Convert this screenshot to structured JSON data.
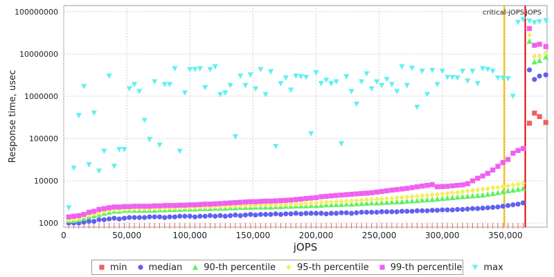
{
  "chart_data": {
    "type": "scatter",
    "xlabel": "jOPS",
    "ylabel": "Response time, usec",
    "xlim": [
      0,
      383000
    ],
    "ylim": [
      800,
      140000000
    ],
    "y_scale": "log",
    "grid": true,
    "x_ticks": [
      0,
      50000,
      100000,
      150000,
      200000,
      250000,
      300000,
      350000
    ],
    "x_tick_labels": [
      "0",
      "50,000",
      "100,000",
      "150,000",
      "200,000",
      "250,000",
      "300,000",
      "350,000"
    ],
    "y_ticks": [
      1000,
      10000,
      100000,
      1000000,
      10000000,
      100000000
    ],
    "y_tick_labels": [
      "1000",
      "10000",
      "100000",
      "1000000",
      "10000000",
      "100000000"
    ],
    "legend_position": "bottom",
    "annotations": {
      "critical_line_x": 349000,
      "critical_line_color": "#ffb800",
      "max_line_x": 365700,
      "max_line_color": "#e00000",
      "label": "critical-jOPS",
      "label2": "jOPS"
    },
    "series": [
      {
        "name": "min",
        "color": "#f06060",
        "marker": "square",
        "x": [
          369000,
          373000,
          377000,
          382000
        ],
        "y": [
          230000,
          400000,
          330000,
          240000
        ]
      },
      {
        "name": "median",
        "color": "#6060f0",
        "marker": "circle",
        "x": [
          4000,
          8000,
          12000,
          16000,
          20000,
          24000,
          28000,
          32000,
          36000,
          40000,
          44000,
          48000,
          52000,
          56000,
          60000,
          64000,
          68000,
          72000,
          76000,
          80000,
          84000,
          88000,
          92000,
          96000,
          100000,
          104000,
          108000,
          112000,
          116000,
          120000,
          124000,
          128000,
          132000,
          136000,
          140000,
          144000,
          148000,
          152000,
          156000,
          160000,
          164000,
          168000,
          172000,
          176000,
          180000,
          184000,
          188000,
          192000,
          196000,
          200000,
          204000,
          208000,
          212000,
          216000,
          220000,
          224000,
          228000,
          232000,
          236000,
          240000,
          244000,
          248000,
          252000,
          256000,
          260000,
          264000,
          268000,
          272000,
          276000,
          280000,
          284000,
          288000,
          292000,
          296000,
          300000,
          304000,
          308000,
          312000,
          316000,
          320000,
          324000,
          328000,
          332000,
          336000,
          340000,
          344000,
          348000,
          352000,
          356000,
          360000,
          364000,
          369000,
          373000,
          377000,
          382000
        ],
        "y": [
          1000,
          1000,
          1000,
          1050,
          1100,
          1100,
          1200,
          1200,
          1250,
          1300,
          1250,
          1300,
          1350,
          1350,
          1350,
          1350,
          1400,
          1400,
          1400,
          1350,
          1400,
          1400,
          1450,
          1450,
          1450,
          1400,
          1450,
          1450,
          1500,
          1450,
          1500,
          1450,
          1500,
          1550,
          1500,
          1550,
          1600,
          1550,
          1600,
          1600,
          1600,
          1650,
          1600,
          1650,
          1650,
          1700,
          1650,
          1700,
          1700,
          1700,
          1700,
          1650,
          1700,
          1700,
          1750,
          1750,
          1700,
          1750,
          1800,
          1800,
          1800,
          1800,
          1850,
          1850,
          1850,
          1850,
          1900,
          1900,
          1900,
          1950,
          1950,
          1950,
          2000,
          2000,
          2050,
          2050,
          2050,
          2100,
          2100,
          2150,
          2200,
          2200,
          2250,
          2300,
          2350,
          2400,
          2500,
          2600,
          2700,
          2800,
          3000,
          4200000,
          2500000,
          3000000,
          3200000
        ]
      },
      {
        "name": "90-th percentile",
        "color": "#60f060",
        "marker": "triangle-up",
        "x": [
          4000,
          8000,
          12000,
          16000,
          20000,
          24000,
          28000,
          32000,
          36000,
          40000,
          44000,
          48000,
          52000,
          56000,
          60000,
          64000,
          68000,
          72000,
          76000,
          80000,
          84000,
          88000,
          92000,
          96000,
          100000,
          104000,
          108000,
          112000,
          116000,
          120000,
          124000,
          128000,
          132000,
          136000,
          140000,
          144000,
          148000,
          152000,
          156000,
          160000,
          164000,
          168000,
          172000,
          176000,
          180000,
          184000,
          188000,
          192000,
          196000,
          200000,
          204000,
          208000,
          212000,
          216000,
          220000,
          224000,
          228000,
          232000,
          236000,
          240000,
          244000,
          248000,
          252000,
          256000,
          260000,
          264000,
          268000,
          272000,
          276000,
          280000,
          284000,
          288000,
          292000,
          296000,
          300000,
          304000,
          308000,
          312000,
          316000,
          320000,
          324000,
          328000,
          332000,
          336000,
          340000,
          344000,
          348000,
          352000,
          356000,
          360000,
          364000,
          369000,
          373000,
          377000,
          382000
        ],
        "y": [
          1150,
          1150,
          1200,
          1300,
          1400,
          1500,
          1600,
          1700,
          1800,
          1900,
          1900,
          2000,
          2000,
          2000,
          2000,
          2000,
          2000,
          2000,
          2050,
          2050,
          2100,
          2100,
          2100,
          2150,
          2150,
          2150,
          2200,
          2200,
          2200,
          2250,
          2250,
          2250,
          2300,
          2300,
          2350,
          2350,
          2350,
          2400,
          2400,
          2400,
          2400,
          2450,
          2450,
          2500,
          2500,
          2550,
          2550,
          2550,
          2600,
          2600,
          2650,
          2700,
          2700,
          2750,
          2750,
          2800,
          2800,
          2850,
          2900,
          2950,
          3000,
          3000,
          3050,
          3100,
          3150,
          3200,
          3200,
          3300,
          3350,
          3400,
          3500,
          3550,
          3600,
          3700,
          3800,
          3900,
          4000,
          4100,
          4200,
          4300,
          4400,
          4500,
          4600,
          4800,
          5000,
          5200,
          5500,
          5800,
          6000,
          6300,
          6600,
          20000000,
          6500000,
          7000000,
          8500000
        ]
      },
      {
        "name": "95-th percentile",
        "color": "#f0f060",
        "marker": "diamond",
        "x": [
          4000,
          8000,
          12000,
          16000,
          20000,
          24000,
          28000,
          32000,
          36000,
          40000,
          44000,
          48000,
          52000,
          56000,
          60000,
          64000,
          68000,
          72000,
          76000,
          80000,
          84000,
          88000,
          92000,
          96000,
          100000,
          104000,
          108000,
          112000,
          116000,
          120000,
          124000,
          128000,
          132000,
          136000,
          140000,
          144000,
          148000,
          152000,
          156000,
          160000,
          164000,
          168000,
          172000,
          176000,
          180000,
          184000,
          188000,
          192000,
          196000,
          200000,
          204000,
          208000,
          212000,
          216000,
          220000,
          224000,
          228000,
          232000,
          236000,
          240000,
          244000,
          248000,
          252000,
          256000,
          260000,
          264000,
          268000,
          272000,
          276000,
          280000,
          284000,
          288000,
          292000,
          296000,
          300000,
          304000,
          308000,
          312000,
          316000,
          320000,
          324000,
          328000,
          332000,
          336000,
          340000,
          344000,
          348000,
          352000,
          356000,
          360000,
          364000,
          369000,
          373000,
          377000,
          382000
        ],
        "y": [
          1200,
          1250,
          1300,
          1450,
          1550,
          1650,
          1750,
          1900,
          2000,
          2100,
          2100,
          2150,
          2150,
          2200,
          2200,
          2200,
          2200,
          2250,
          2250,
          2250,
          2300,
          2300,
          2300,
          2350,
          2350,
          2350,
          2400,
          2400,
          2450,
          2450,
          2450,
          2500,
          2500,
          2550,
          2550,
          2600,
          2600,
          2650,
          2650,
          2700,
          2700,
          2700,
          2750,
          2750,
          2800,
          2800,
          2850,
          2900,
          2950,
          3000,
          3050,
          3100,
          3150,
          3200,
          3250,
          3300,
          3350,
          3400,
          3450,
          3500,
          3600,
          3650,
          3700,
          3800,
          3850,
          3950,
          4000,
          4100,
          4200,
          4300,
          4400,
          4500,
          4600,
          4750,
          4900,
          5000,
          5200,
          5300,
          5500,
          5700,
          5900,
          6100,
          6300,
          6500,
          6800,
          7000,
          7300,
          7600,
          8000,
          8300,
          8700,
          28000000,
          8700000,
          9000000,
          10500000
        ]
      },
      {
        "name": "99-th percentile",
        "color": "#f060f0",
        "marker": "square",
        "x": [
          4000,
          8000,
          12000,
          16000,
          20000,
          24000,
          28000,
          32000,
          36000,
          40000,
          44000,
          48000,
          52000,
          56000,
          60000,
          64000,
          68000,
          72000,
          76000,
          80000,
          84000,
          88000,
          92000,
          96000,
          100000,
          104000,
          108000,
          112000,
          116000,
          120000,
          124000,
          128000,
          132000,
          136000,
          140000,
          144000,
          148000,
          152000,
          156000,
          160000,
          164000,
          168000,
          172000,
          176000,
          180000,
          184000,
          188000,
          192000,
          196000,
          200000,
          204000,
          208000,
          212000,
          216000,
          220000,
          224000,
          228000,
          232000,
          236000,
          240000,
          244000,
          248000,
          252000,
          256000,
          260000,
          264000,
          268000,
          272000,
          276000,
          280000,
          284000,
          288000,
          292000,
          296000,
          300000,
          304000,
          308000,
          312000,
          316000,
          320000,
          324000,
          328000,
          332000,
          336000,
          340000,
          344000,
          348000,
          352000,
          356000,
          360000,
          364000,
          369000,
          373000,
          377000,
          382000
        ],
        "y": [
          1400,
          1450,
          1500,
          1600,
          1800,
          1900,
          2100,
          2200,
          2300,
          2400,
          2400,
          2450,
          2450,
          2500,
          2500,
          2500,
          2500,
          2550,
          2550,
          2600,
          2600,
          2600,
          2650,
          2650,
          2700,
          2700,
          2750,
          2800,
          2800,
          2850,
          2900,
          2950,
          3000,
          3050,
          3100,
          3150,
          3200,
          3200,
          3250,
          3300,
          3300,
          3350,
          3400,
          3450,
          3500,
          3600,
          3700,
          3800,
          3900,
          4000,
          4200,
          4300,
          4400,
          4500,
          4600,
          4700,
          4800,
          4900,
          5000,
          5100,
          5200,
          5400,
          5600,
          5800,
          6000,
          6200,
          6400,
          6600,
          6900,
          7200,
          7500,
          7800,
          8100,
          7200,
          7300,
          7400,
          7600,
          7800,
          8000,
          8500,
          10000,
          11500,
          13000,
          15000,
          18000,
          22000,
          27000,
          32000,
          45000,
          52000,
          58000,
          40000000,
          16000000,
          17000000,
          15000000
        ]
      },
      {
        "name": "max",
        "color": "#60f0f0",
        "marker": "triangle-down",
        "x": [
          4000,
          8000,
          12000,
          16000,
          20000,
          24000,
          28000,
          32000,
          36000,
          40000,
          44000,
          48000,
          52000,
          56000,
          60000,
          64000,
          68000,
          72000,
          76000,
          80000,
          84000,
          88000,
          92000,
          96000,
          100000,
          104000,
          108000,
          112000,
          116000,
          120000,
          124000,
          128000,
          132000,
          136000,
          140000,
          144000,
          148000,
          152000,
          156000,
          160000,
          164000,
          168000,
          172000,
          176000,
          180000,
          184000,
          188000,
          192000,
          196000,
          200000,
          204000,
          208000,
          212000,
          216000,
          220000,
          224000,
          228000,
          232000,
          236000,
          240000,
          244000,
          248000,
          252000,
          256000,
          260000,
          264000,
          268000,
          272000,
          276000,
          280000,
          284000,
          288000,
          292000,
          296000,
          300000,
          304000,
          308000,
          312000,
          316000,
          320000,
          324000,
          328000,
          332000,
          336000,
          340000,
          344000,
          348000,
          352000,
          356000,
          360000,
          364000,
          369000,
          373000,
          377000,
          382000
        ],
        "y": [
          2300,
          20000,
          350000,
          1700000,
          24000,
          400000,
          17000,
          50000,
          3000000,
          22000,
          55000,
          55000,
          1500000,
          1900000,
          1300000,
          270000,
          95000,
          2200000,
          70000,
          1900000,
          1900000,
          4500000,
          50000,
          1200000,
          4300000,
          4300000,
          4500000,
          1600000,
          4300000,
          5000000,
          1100000,
          1200000,
          1800000,
          110000,
          3000000,
          1800000,
          3200000,
          1500000,
          4300000,
          1100000,
          3800000,
          65000,
          2000000,
          2700000,
          1400000,
          3000000,
          2900000,
          2800000,
          130000,
          3600000,
          2000000,
          2400000,
          2000000,
          2200000,
          75000,
          2900000,
          1300000,
          650000,
          2200000,
          3400000,
          1500000,
          2200000,
          1800000,
          2500000,
          1900000,
          1300000,
          5000000,
          1800000,
          4600000,
          550000,
          3900000,
          1100000,
          4100000,
          1900000,
          3900000,
          2800000,
          2800000,
          2700000,
          3900000,
          2300000,
          3900000,
          2000000,
          4500000,
          4300000,
          3900000,
          2700000,
          2700000,
          2600000,
          1000000,
          56000000,
          65000000,
          60000000,
          55000000,
          58000000,
          62000000
        ]
      }
    ]
  },
  "legend": [
    {
      "label": "min",
      "color": "#f06060",
      "marker": "square"
    },
    {
      "label": "median",
      "color": "#6060f0",
      "marker": "circle"
    },
    {
      "label": "90-th percentile",
      "color": "#60f060",
      "marker": "triangle-up"
    },
    {
      "label": "95-th percentile",
      "color": "#f0f060",
      "marker": "diamond"
    },
    {
      "label": "99-th percentile",
      "color": "#f060f0",
      "marker": "square"
    },
    {
      "label": "max",
      "color": "#60f0f0",
      "marker": "triangle-down"
    }
  ]
}
